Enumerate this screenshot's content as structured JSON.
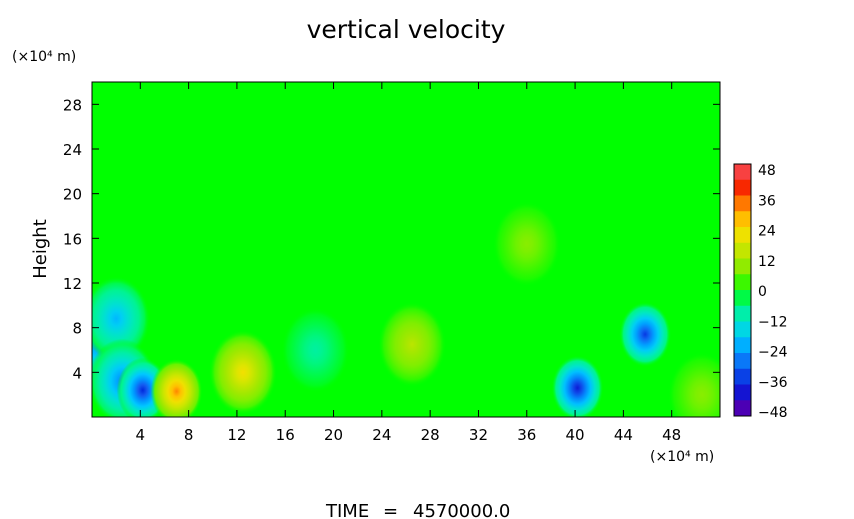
{
  "chart_data": {
    "type": "heatmap",
    "title": "vertical velocity",
    "xlabel": "",
    "ylabel": "Height",
    "x_unit": "(×10⁴ m)",
    "y_unit": "(×10⁴ m)",
    "xlim": [
      0,
      52
    ],
    "ylim": [
      0,
      30
    ],
    "x_ticks": [
      "4",
      "8",
      "12",
      "16",
      "20",
      "24",
      "28",
      "32",
      "36",
      "40",
      "44",
      "48"
    ],
    "y_ticks": [
      "4",
      "8",
      "12",
      "16",
      "20",
      "24",
      "28"
    ],
    "colorbar": {
      "ticks": [
        "48",
        "36",
        "24",
        "12",
        "0",
        "−12",
        "−24",
        "−36",
        "−48"
      ],
      "min": -48,
      "max": 48
    },
    "background_value": 0,
    "features": [
      {
        "x": 0.6,
        "y": 6.6,
        "value": -26
      },
      {
        "x": 2.0,
        "y": 8.8,
        "value": -20
      },
      {
        "x": 2.5,
        "y": 3.2,
        "value": -26
      },
      {
        "x": 4.2,
        "y": 2.4,
        "value": -36
      },
      {
        "x": 7.0,
        "y": 2.3,
        "value": 32
      },
      {
        "x": 12.5,
        "y": 4.0,
        "value": 22
      },
      {
        "x": 26.5,
        "y": 6.5,
        "value": 14
      },
      {
        "x": 40.2,
        "y": 2.6,
        "value": -38
      },
      {
        "x": 45.8,
        "y": 7.4,
        "value": -34
      },
      {
        "x": 50.5,
        "y": 2.0,
        "value": 8
      },
      {
        "x": 18.5,
        "y": 6.0,
        "value": -8
      },
      {
        "x": 36.0,
        "y": 15.5,
        "value": 8
      }
    ],
    "grid": false
  },
  "footer": {
    "time_label": "TIME",
    "time_sep": "=",
    "time_value": "4570000.0"
  }
}
